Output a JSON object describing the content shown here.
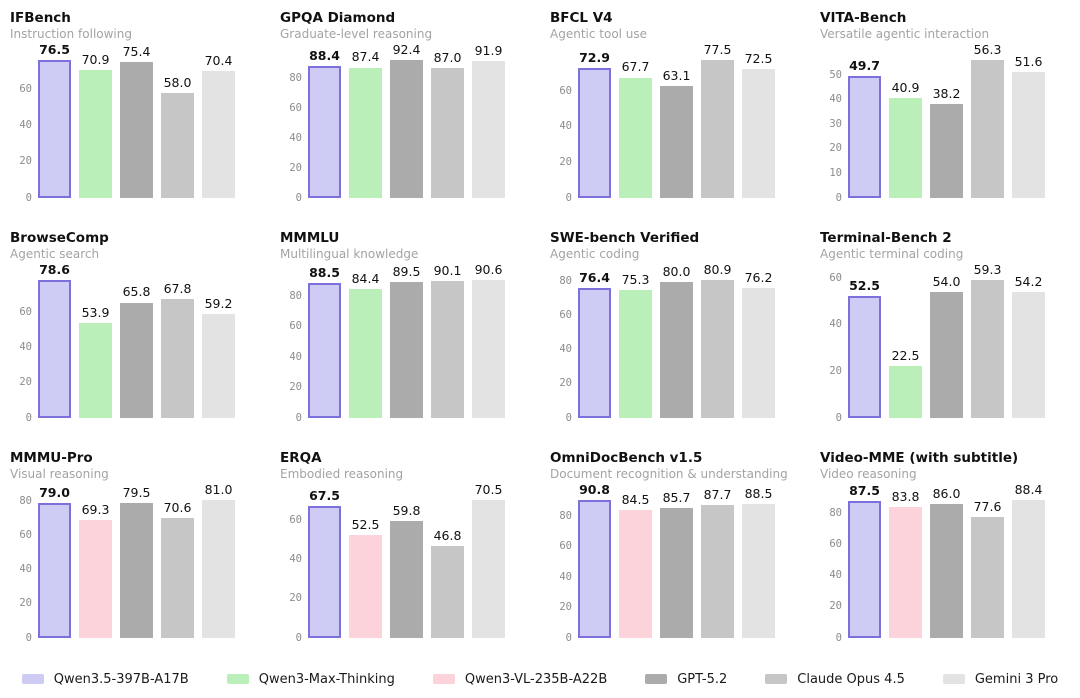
{
  "colors": {
    "qwen35": {
      "fill": "#cecbf4",
      "border": "#7b70dc"
    },
    "qwen3max": {
      "fill": "#baefba"
    },
    "qwen3vl": {
      "fill": "#fcd3da"
    },
    "gpt52": {
      "fill": "#ababab"
    },
    "claude": {
      "fill": "#c6c6c6"
    },
    "gemini": {
      "fill": "#e3e3e3"
    }
  },
  "legend": {
    "items": [
      {
        "model": "qwen35",
        "label": "Qwen3.5-397B-A17B"
      },
      {
        "model": "qwen3max",
        "label": "Qwen3-Max-Thinking"
      },
      {
        "model": "qwen3vl",
        "label": "Qwen3-VL-235B-A22B"
      },
      {
        "model": "gpt52",
        "label": "GPT-5.2"
      },
      {
        "model": "claude",
        "label": "Claude Opus 4.5"
      },
      {
        "model": "gemini",
        "label": "Gemini 3 Pro"
      }
    ]
  },
  "chart_data": [
    {
      "type": "bar",
      "title": "IFBench",
      "subtitle": "Instruction following",
      "models": [
        "qwen35",
        "qwen3max",
        "gpt52",
        "claude",
        "gemini"
      ],
      "values": [
        76.5,
        70.9,
        75.4,
        58.0,
        70.4
      ],
      "yticks": [
        0,
        20,
        40,
        60
      ],
      "ylim": [
        0,
        76.5
      ],
      "grid": false
    },
    {
      "type": "bar",
      "title": "GPQA Diamond",
      "subtitle": "Graduate-level reasoning",
      "models": [
        "qwen35",
        "qwen3max",
        "gpt52",
        "claude",
        "gemini"
      ],
      "values": [
        88.4,
        87.4,
        92.4,
        87.0,
        91.9
      ],
      "yticks": [
        0,
        20,
        40,
        60,
        80
      ],
      "ylim": [
        0,
        92.4
      ],
      "grid": false
    },
    {
      "type": "bar",
      "title": "BFCL V4",
      "subtitle": "Agentic tool use",
      "models": [
        "qwen35",
        "qwen3max",
        "gpt52",
        "claude",
        "gemini"
      ],
      "values": [
        72.9,
        67.7,
        63.1,
        77.5,
        72.5
      ],
      "yticks": [
        0,
        20,
        40,
        60
      ],
      "ylim": [
        0,
        77.5
      ],
      "grid": false
    },
    {
      "type": "bar",
      "title": "VITA-Bench",
      "subtitle": "Versatile agentic interaction",
      "models": [
        "qwen35",
        "qwen3max",
        "gpt52",
        "claude",
        "gemini"
      ],
      "values": [
        49.7,
        40.9,
        38.2,
        56.3,
        51.6
      ],
      "yticks": [
        0,
        10,
        20,
        30,
        40,
        50
      ],
      "ylim": [
        0,
        56.3
      ],
      "grid": false
    },
    {
      "type": "bar",
      "title": "BrowseComp",
      "subtitle": "Agentic search",
      "models": [
        "qwen35",
        "qwen3max",
        "gpt52",
        "claude",
        "gemini"
      ],
      "values": [
        78.6,
        53.9,
        65.8,
        67.8,
        59.2
      ],
      "yticks": [
        0,
        20,
        40,
        60
      ],
      "ylim": [
        0,
        78.6
      ],
      "grid": false
    },
    {
      "type": "bar",
      "title": "MMMLU",
      "subtitle": "Multilingual knowledge",
      "models": [
        "qwen35",
        "qwen3max",
        "gpt52",
        "claude",
        "gemini"
      ],
      "values": [
        88.5,
        84.4,
        89.5,
        90.1,
        90.6
      ],
      "yticks": [
        0,
        20,
        40,
        60,
        80
      ],
      "ylim": [
        0,
        90.6
      ],
      "grid": false
    },
    {
      "type": "bar",
      "title": "SWE-bench Verified",
      "subtitle": "Agentic coding",
      "models": [
        "qwen35",
        "qwen3max",
        "gpt52",
        "claude",
        "gemini"
      ],
      "values": [
        76.4,
        75.3,
        80.0,
        80.9,
        76.2
      ],
      "yticks": [
        0,
        20,
        40,
        60,
        80
      ],
      "ylim": [
        0,
        80.9
      ],
      "grid": false
    },
    {
      "type": "bar",
      "title": "Terminal-Bench 2",
      "subtitle": "Agentic terminal coding",
      "models": [
        "qwen35",
        "qwen3max",
        "gpt52",
        "claude",
        "gemini"
      ],
      "values": [
        52.5,
        22.5,
        54.0,
        59.3,
        54.2
      ],
      "yticks": [
        0,
        20,
        40,
        60
      ],
      "ylim": [
        0,
        59.3
      ],
      "grid": false
    },
    {
      "type": "bar",
      "title": "MMMU-Pro",
      "subtitle": "Visual reasoning",
      "models": [
        "qwen35",
        "qwen3vl",
        "gpt52",
        "claude",
        "gemini"
      ],
      "values": [
        79.0,
        69.3,
        79.5,
        70.6,
        81.0
      ],
      "yticks": [
        0,
        20,
        40,
        60,
        80
      ],
      "ylim": [
        0,
        81.0
      ],
      "grid": false
    },
    {
      "type": "bar",
      "title": "ERQA",
      "subtitle": "Embodied reasoning",
      "models": [
        "qwen35",
        "qwen3vl",
        "gpt52",
        "claude",
        "gemini"
      ],
      "values": [
        67.5,
        52.5,
        59.8,
        46.8,
        70.5
      ],
      "yticks": [
        0,
        20,
        40,
        60
      ],
      "ylim": [
        0,
        70.5
      ],
      "grid": false
    },
    {
      "type": "bar",
      "title": "OmniDocBench v1.5",
      "subtitle": "Document recognition & understanding",
      "models": [
        "qwen35",
        "qwen3vl",
        "gpt52",
        "claude",
        "gemini"
      ],
      "values": [
        90.8,
        84.5,
        85.7,
        87.7,
        88.5
      ],
      "yticks": [
        0,
        20,
        40,
        60,
        80
      ],
      "ylim": [
        0,
        90.8
      ],
      "grid": false
    },
    {
      "type": "bar",
      "title": "Video-MME (with subtitle)",
      "subtitle": "Video reasoning",
      "models": [
        "qwen35",
        "qwen3vl",
        "gpt52",
        "claude",
        "gemini"
      ],
      "values": [
        87.5,
        83.8,
        86.0,
        77.6,
        88.4
      ],
      "yticks": [
        0,
        20,
        40,
        60,
        80
      ],
      "ylim": [
        0,
        88.4
      ],
      "grid": false
    }
  ]
}
